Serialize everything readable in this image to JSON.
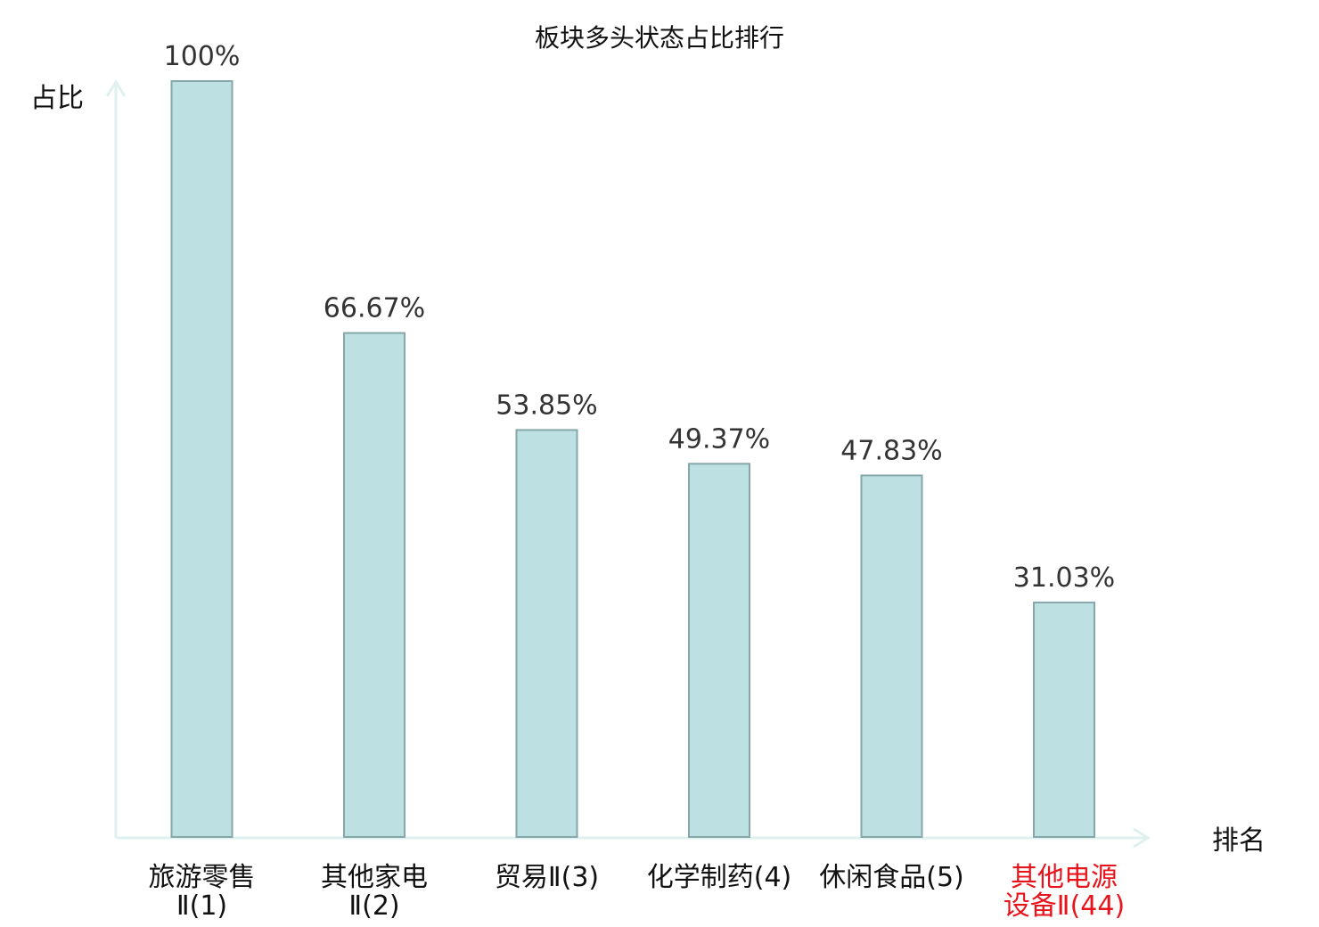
{
  "chart_data": {
    "type": "bar",
    "title": "板块多头状态占比排行",
    "ylabel": "占比",
    "xlabel": "排名",
    "ylim": [
      0,
      100
    ],
    "grid": false,
    "legend": "none",
    "categories": [
      {
        "lines": [
          "旅游零售",
          "Ⅱ(1)"
        ],
        "highlight": false
      },
      {
        "lines": [
          "其他家电",
          "Ⅱ(2)"
        ],
        "highlight": false
      },
      {
        "lines": [
          "贸易Ⅱ(3)"
        ],
        "highlight": false
      },
      {
        "lines": [
          "化学制药(4)"
        ],
        "highlight": false
      },
      {
        "lines": [
          "休闲食品(5)"
        ],
        "highlight": false
      },
      {
        "lines": [
          "其他电源",
          "设备Ⅱ(44)"
        ],
        "highlight": true
      }
    ],
    "values": [
      100,
      66.67,
      53.85,
      49.37,
      47.83,
      31.03
    ],
    "value_labels": [
      "100%",
      "66.67%",
      "53.85%",
      "49.37%",
      "47.83%",
      "31.03%"
    ]
  },
  "colors": {
    "bar_fill": "#bde0e3",
    "bar_stroke": "#86a7aa",
    "axis": "#dff1ef",
    "highlight_text": "#e8141c",
    "normal_text": "#111111",
    "value_text": "#333333"
  }
}
